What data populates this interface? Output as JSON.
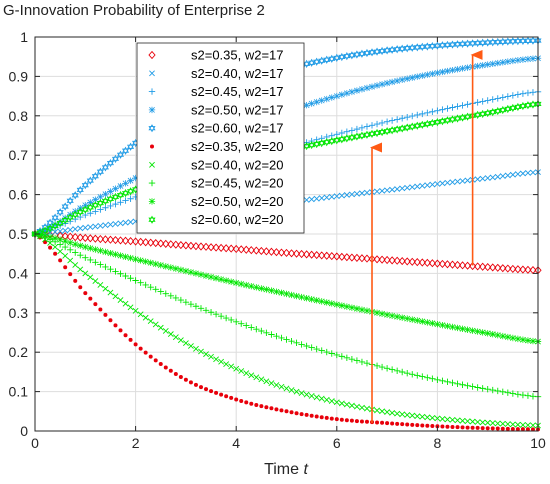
{
  "chart_title": "G-Innovation Probability of Enterprise 2",
  "chart_data": {
    "type": "line",
    "title": "G-Innovation Probability of Enterprise 2",
    "xlabel": "Time",
    "xlabel_var": "t",
    "ylabel": "",
    "xlim": [
      0,
      10
    ],
    "ylim": [
      0,
      1
    ],
    "xticks": [
      0,
      2,
      4,
      6,
      8,
      10
    ],
    "yticks": [
      0,
      0.1,
      0.2,
      0.3,
      0.4,
      0.5,
      0.6,
      0.7,
      0.8,
      0.9,
      1
    ],
    "grid": true,
    "legend_position": "top-center",
    "x": [
      0,
      1,
      2,
      3,
      4,
      5,
      6,
      7,
      8,
      9,
      10
    ],
    "series": [
      {
        "name": "s2=0.35, w2=17",
        "marker": "diamond",
        "color": "#e8000b",
        "values": [
          0.5,
          0.49,
          0.481,
          0.471,
          0.462,
          0.452,
          0.443,
          0.434,
          0.425,
          0.416,
          0.408
        ]
      },
      {
        "name": "s2=0.40, w2=17",
        "marker": "x",
        "color": "#1f9be6",
        "values": [
          0.5,
          0.516,
          0.532,
          0.548,
          0.564,
          0.58,
          0.596,
          0.611,
          0.627,
          0.642,
          0.657
        ]
      },
      {
        "name": "s2=0.45, w2=17",
        "marker": "plus",
        "color": "#1f9be6",
        "values": [
          0.5,
          0.548,
          0.594,
          0.638,
          0.68,
          0.718,
          0.753,
          0.785,
          0.813,
          0.839,
          0.861
        ]
      },
      {
        "name": "s2=0.50, w2=17",
        "marker": "asterisk",
        "color": "#1f9be6",
        "values": [
          0.5,
          0.573,
          0.642,
          0.706,
          0.762,
          0.81,
          0.85,
          0.883,
          0.909,
          0.93,
          0.946
        ]
      },
      {
        "name": "s2=0.60, w2=17",
        "marker": "hexagram",
        "color": "#1f9be6",
        "values": [
          0.5,
          0.624,
          0.731,
          0.815,
          0.876,
          0.919,
          0.947,
          0.966,
          0.978,
          0.986,
          0.991
        ]
      },
      {
        "name": "s2=0.35, w2=20",
        "marker": "dot",
        "color": "#e8000b",
        "values": [
          0.5,
          0.35,
          0.22,
          0.13,
          0.08,
          0.05,
          0.03,
          0.02,
          0.012,
          0.007,
          0.004
        ]
      },
      {
        "name": "s2=0.40, w2=20",
        "marker": "x",
        "color": "#00e600",
        "values": [
          0.5,
          0.4,
          0.305,
          0.223,
          0.158,
          0.108,
          0.073,
          0.048,
          0.032,
          0.021,
          0.014
        ]
      },
      {
        "name": "s2=0.45, w2=20",
        "marker": "plus",
        "color": "#00e600",
        "values": [
          0.5,
          0.44,
          0.382,
          0.327,
          0.277,
          0.232,
          0.193,
          0.159,
          0.13,
          0.106,
          0.087
        ]
      },
      {
        "name": "s2=0.50, w2=20",
        "marker": "asterisk",
        "color": "#00e600",
        "values": [
          0.5,
          0.467,
          0.436,
          0.406,
          0.376,
          0.348,
          0.321,
          0.295,
          0.271,
          0.248,
          0.227
        ]
      },
      {
        "name": "s2=0.60, w2=20",
        "marker": "hexagram",
        "color": "#00e600",
        "values": [
          0.5,
          0.562,
          0.613,
          0.653,
          0.686,
          0.713,
          0.738,
          0.761,
          0.784,
          0.807,
          0.83
        ]
      }
    ],
    "annotations": [
      {
        "type": "arrow",
        "color": "#ff5a14",
        "x": 6.7,
        "from_y": 0.02,
        "to_y": 0.75
      },
      {
        "type": "arrow",
        "color": "#ff5a14",
        "x": 8.7,
        "from_y": 0.42,
        "to_y": 0.985
      }
    ]
  }
}
